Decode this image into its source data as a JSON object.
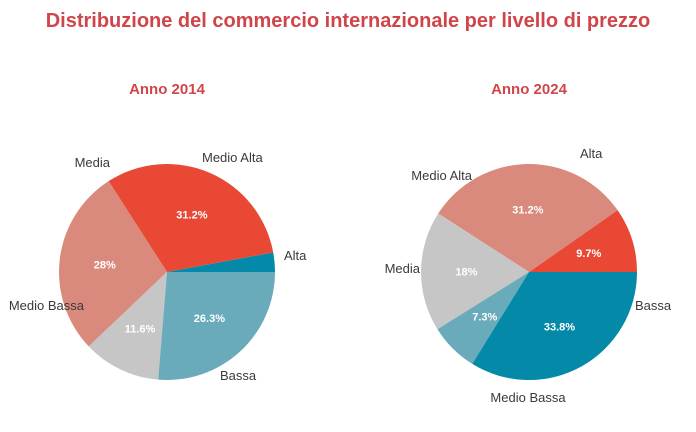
{
  "title": "Distribuzione del commercio internazionale per livello di prezzo",
  "colors": {
    "Alta": "#048aa8",
    "Medio Alta": "#69abba",
    "Media": "#c6c6c6",
    "Medio Bassa": "#da8a7c",
    "Bassa": "#e84834",
    "title": "#d0454a"
  },
  "chart_data": [
    {
      "type": "pie",
      "title": "Anno 2014",
      "categories": [
        "Alta",
        "Bassa",
        "Medio Bassa",
        "Media",
        "Medio Alta"
      ],
      "values": [
        2.9,
        31.2,
        28,
        11.6,
        26.3
      ],
      "labels": [
        "",
        "31.2%",
        "28%",
        "11.6%",
        "26.3%"
      ]
    },
    {
      "type": "pie",
      "title": "Anno 2024",
      "categories": [
        "Bassa",
        "Medio Bassa",
        "Media",
        "Medio Alta",
        "Alta"
      ],
      "values": [
        9.7,
        31.2,
        18,
        7.3,
        33.8
      ],
      "labels": [
        "9.7%",
        "31.2%",
        "18%",
        "7.3%",
        "33.8%"
      ]
    }
  ]
}
